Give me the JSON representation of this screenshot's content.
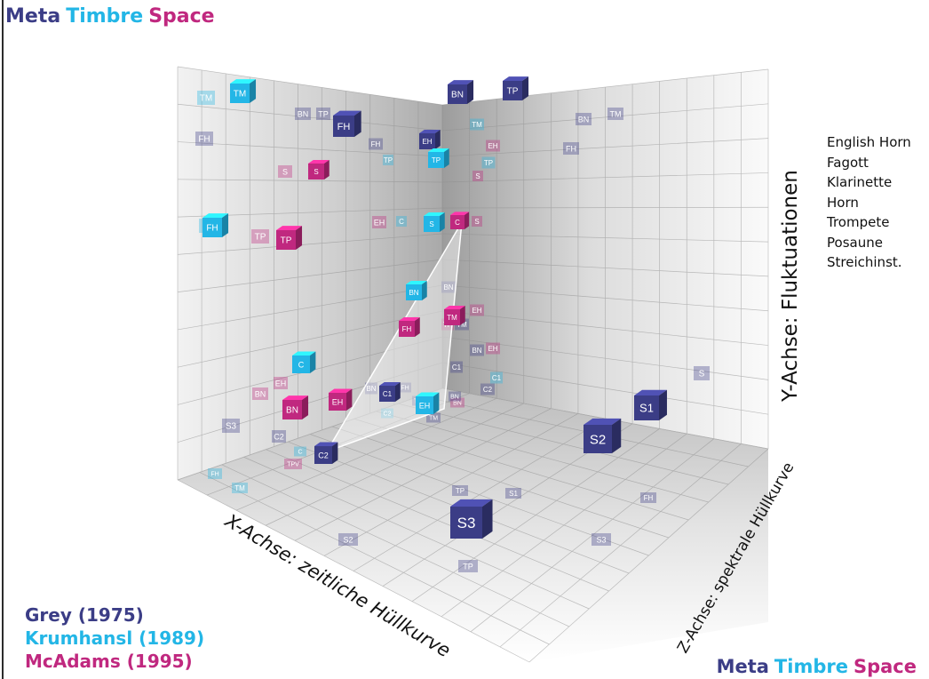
{
  "title": {
    "word1": "Meta",
    "word2": "Timbre",
    "word3": "Space"
  },
  "colors": {
    "grey": "#3b3d86",
    "krumhansl": "#23b6e6",
    "mcadams": "#c0287f"
  },
  "axes": {
    "x": "X-Achse: zeitliche Hüllkurve",
    "y": "Y-Achse: Fluktuationen",
    "z": "Z-Achse: spektrale Hüllkurve"
  },
  "sources": [
    "Grey (1975)",
    "Krumhansl (1989)",
    "McAdams (1995)"
  ],
  "instruments": [
    "English Horn",
    "Fagott",
    "Klarinette",
    "Horn",
    "Trompete",
    "Posaune",
    "Streichinst."
  ],
  "blocks": [
    {
      "label": "TM",
      "group": "krumhansl"
    },
    {
      "label": "FH",
      "group": "grey"
    },
    {
      "label": "BN",
      "group": "grey"
    },
    {
      "label": "TP",
      "group": "grey"
    },
    {
      "label": "EH",
      "group": "grey"
    },
    {
      "label": "TP",
      "group": "krumhansl"
    },
    {
      "label": "S",
      "group": "mcadams"
    },
    {
      "label": "FH",
      "group": "krumhansl"
    },
    {
      "label": "TP",
      "group": "mcadams"
    },
    {
      "label": "S",
      "group": "krumhansl"
    },
    {
      "label": "C",
      "group": "mcadams"
    },
    {
      "label": "BN",
      "group": "krumhansl"
    },
    {
      "label": "TM",
      "group": "mcadams"
    },
    {
      "label": "FH",
      "group": "mcadams"
    },
    {
      "label": "C",
      "group": "krumhansl"
    },
    {
      "label": "EH",
      "group": "mcadams"
    },
    {
      "label": "BN",
      "group": "mcadams"
    },
    {
      "label": "C1",
      "group": "grey"
    },
    {
      "label": "EH",
      "group": "krumhansl"
    },
    {
      "label": "C2",
      "group": "grey"
    },
    {
      "label": "S1",
      "group": "grey"
    },
    {
      "label": "S2",
      "group": "grey"
    },
    {
      "label": "S3",
      "group": "grey"
    }
  ],
  "projections": [
    "TM",
    "FH",
    "BN",
    "TP",
    "FH",
    "S",
    "FH",
    "TP",
    "EH",
    "TM",
    "EH",
    "TP",
    "S",
    "S",
    "C",
    "BN",
    "FH",
    "TM",
    "BN",
    "EH",
    "C1",
    "C2",
    "S3",
    "C2",
    "BN",
    "EH",
    "S",
    "TM",
    "TP",
    "BN",
    "TP",
    "BN",
    "EH",
    "C1",
    "C2",
    "C",
    "TM",
    "TPV",
    "FH",
    "TM",
    "BN",
    "TP",
    "S1",
    "FH",
    "S2",
    "S3",
    "TP",
    "BN",
    "TM",
    "FH"
  ]
}
